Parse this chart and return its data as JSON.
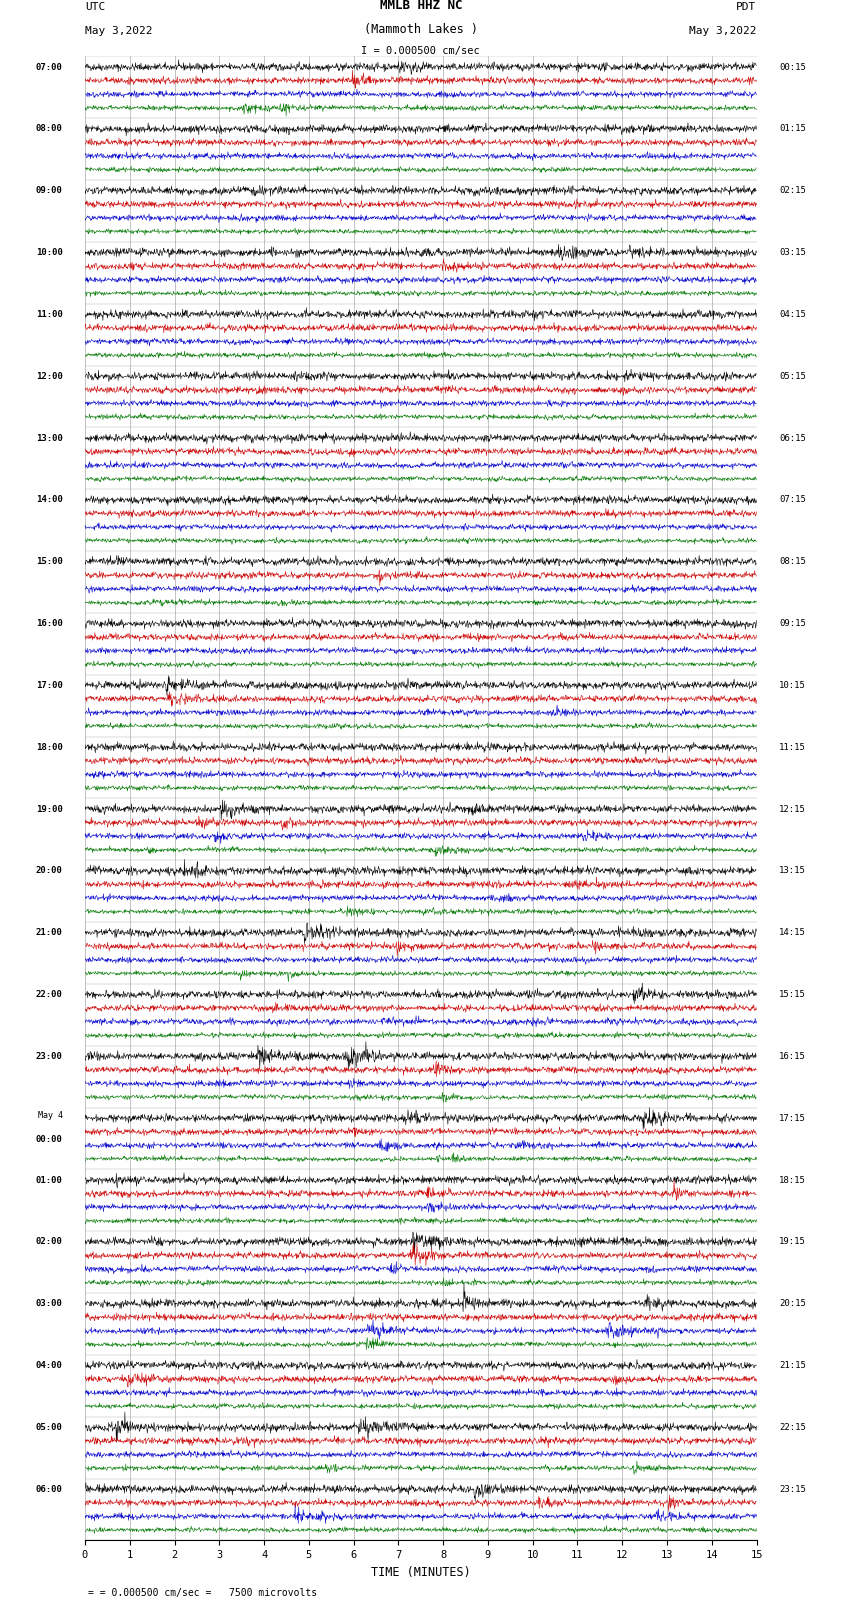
{
  "title_line1": "MMLB HHZ NC",
  "title_line2": "(Mammoth Lakes )",
  "title_line3": "I = 0.000500 cm/sec",
  "left_label_top": "UTC",
  "left_label_date": "May 3,2022",
  "right_label_top": "PDT",
  "right_label_date": "May 3,2022",
  "bottom_label": "TIME (MINUTES)",
  "bottom_note": "= 0.000500 cm/sec =   7500 microvolts",
  "xlabel_ticks": [
    0,
    1,
    2,
    3,
    4,
    5,
    6,
    7,
    8,
    9,
    10,
    11,
    12,
    13,
    14,
    15
  ],
  "xlim": [
    0,
    15
  ],
  "background_color": "#ffffff",
  "trace_colors": [
    "#000000",
    "#cc0000",
    "#0000cc",
    "#007700"
  ],
  "grid_color": "#888888",
  "left_times": [
    "07:00",
    "08:00",
    "09:00",
    "10:00",
    "11:00",
    "12:00",
    "13:00",
    "14:00",
    "15:00",
    "16:00",
    "17:00",
    "18:00",
    "19:00",
    "20:00",
    "21:00",
    "22:00",
    "23:00",
    "May 4\n00:00",
    "01:00",
    "02:00",
    "03:00",
    "04:00",
    "05:00",
    "06:00"
  ],
  "right_times": [
    "00:15",
    "01:15",
    "02:15",
    "03:15",
    "04:15",
    "05:15",
    "06:15",
    "07:15",
    "08:15",
    "09:15",
    "10:15",
    "11:15",
    "12:15",
    "13:15",
    "14:15",
    "15:15",
    "16:15",
    "17:15",
    "18:15",
    "19:15",
    "20:15",
    "21:15",
    "22:15",
    "23:15"
  ],
  "num_hour_blocks": 24,
  "traces_per_block": 4,
  "seed": 42
}
